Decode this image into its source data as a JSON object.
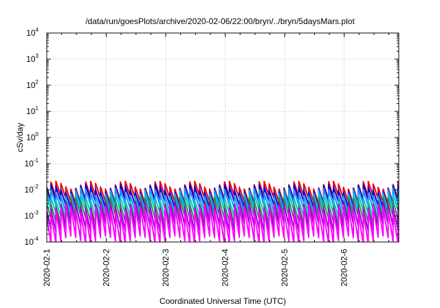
{
  "chart_data": {
    "type": "line",
    "title": "/data/run/goesPlots/archive/2020-02-06/22:00/bryn/../bryn/5daysMars.plot",
    "xlabel": "Coordinated Universal Time (UTC)",
    "ylabel": "cSv/day",
    "yscale": "log",
    "ylim": [
      0.0001,
      10000
    ],
    "xlim": [
      "2020-02-01T00:00",
      "2020-02-06T22:00"
    ],
    "grid": true,
    "x_tick_labels": [
      "2020-02-1",
      "2020-02-2",
      "2020-02-3",
      "2020-02-4",
      "2020-02-5",
      "2020-02-6"
    ],
    "y_ticks": [
      {
        "base": "10",
        "exp": "-4",
        "value": 0.0001
      },
      {
        "base": "10",
        "exp": "-3",
        "value": 0.001
      },
      {
        "base": "10",
        "exp": "-2",
        "value": 0.01
      },
      {
        "base": "10",
        "exp": "-1",
        "value": 0.1
      },
      {
        "base": "10",
        "exp": "0",
        "value": 1
      },
      {
        "base": "10",
        "exp": "1",
        "value": 10
      },
      {
        "base": "10",
        "exp": "2",
        "value": 100
      },
      {
        "base": "10",
        "exp": "3",
        "value": 1000
      },
      {
        "base": "10",
        "exp": "4",
        "value": 10000
      }
    ],
    "sawtooth_period_hours": 2,
    "series": [
      {
        "color": "#e8000b",
        "peak": 0.015,
        "trough": 0.004
      },
      {
        "color": "#0000dd",
        "peak": 0.011,
        "trough": 0.0028
      },
      {
        "color": "#1e8fff",
        "peak": 0.008,
        "trough": 0.0019
      },
      {
        "color": "#00c8c8",
        "peak": 0.005,
        "trough": 0.0012
      },
      {
        "color": "#2e8b57",
        "peak": 0.0035,
        "trough": 0.0007
      },
      {
        "color": "#9400d3",
        "peak": 0.0025,
        "trough": 0.00035
      },
      {
        "color": "#ff00ff",
        "peak": 0.0018,
        "trough": 0.00012
      }
    ]
  }
}
